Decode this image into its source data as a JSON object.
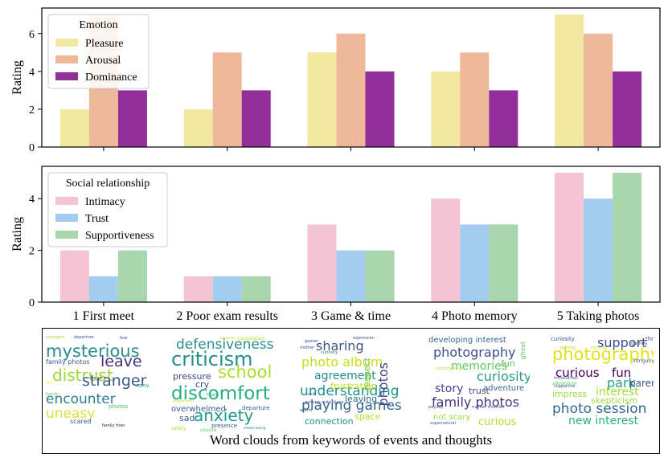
{
  "chart_data": [
    {
      "type": "bar",
      "categories": [
        "1 First meet",
        "2 Poor exam results",
        "3 Game & time",
        "4 Photo memory",
        "5 Taking photos"
      ],
      "series": [
        {
          "name": "Pleasure",
          "values": [
            2,
            2,
            5,
            4,
            7
          ],
          "color": "#f2e8a0"
        },
        {
          "name": "Arousal",
          "values": [
            7,
            5,
            6,
            5,
            6
          ],
          "color": "#efb89b"
        },
        {
          "name": "Dominance",
          "values": [
            3,
            3,
            4,
            3,
            4
          ],
          "color": "#922f9a"
        }
      ],
      "legend_title": "Emotion",
      "legend_position": "top-left",
      "xlabel": "",
      "ylabel": "Rating",
      "ylim": [
        0,
        7.35
      ],
      "yticks": [
        0,
        2,
        4,
        6
      ]
    },
    {
      "type": "bar",
      "categories": [
        "1 First meet",
        "2 Poor exam results",
        "3 Game & time",
        "4 Photo memory",
        "5 Taking photos"
      ],
      "series": [
        {
          "name": "Intimacy",
          "values": [
            2,
            1,
            3,
            4,
            5
          ],
          "color": "#f2c4d4"
        },
        {
          "name": "Trust",
          "values": [
            1,
            1,
            2,
            3,
            4
          ],
          "color": "#a3cdf0"
        },
        {
          "name": "Supportiveness",
          "values": [
            2,
            1,
            2,
            3,
            5
          ],
          "color": "#a8d6ad"
        }
      ],
      "legend_title": "Social relationship",
      "legend_position": "top-left",
      "xlabel": "",
      "ylabel": "Rating",
      "ylim": [
        0,
        5.25
      ],
      "yticks": [
        0,
        2,
        4
      ]
    }
  ],
  "word_clouds": {
    "caption": "Word clouds from keywords of events and thoughts",
    "clouds": [
      {
        "words": [
          {
            "t": "mysterious",
            "c": "#2b8e8c",
            "s": 21
          },
          {
            "t": "leave",
            "c": "#472f7d",
            "s": 19
          },
          {
            "t": "distrust",
            "c": "#a2d43a",
            "s": 20
          },
          {
            "t": "stranger",
            "c": "#3c5a8e",
            "s": 19
          },
          {
            "t": "encounter",
            "c": "#2c7f8e",
            "s": 17
          },
          {
            "t": "uneasy",
            "c": "#d9e33b",
            "s": 17
          },
          {
            "t": "family photos",
            "c": "#375b8d",
            "s": 8
          },
          {
            "t": "conversation",
            "c": "#2a9e89",
            "s": 7
          },
          {
            "t": "scared",
            "c": "#31698e",
            "s": 8
          },
          {
            "t": "photos",
            "c": "#4cc26c",
            "s": 7
          },
          {
            "t": "strangers",
            "c": "#aadc32",
            "s": 5
          },
          {
            "t": "departure",
            "c": "#3b528b",
            "s": 5
          },
          {
            "t": "fear",
            "c": "#3b528b",
            "s": 5
          },
          {
            "t": "family frien",
            "c": "#440154",
            "s": 5
          },
          {
            "t": "family",
            "c": "#5ec962",
            "s": 5
          },
          {
            "t": "mo",
            "c": "#fde725",
            "s": 5
          }
        ]
      },
      {
        "words": [
          {
            "t": "defensiveness",
            "c": "#2a8e8b",
            "s": 17
          },
          {
            "t": "criticism",
            "c": "#218f8d",
            "s": 24
          },
          {
            "t": "school",
            "c": "#addc30",
            "s": 21
          },
          {
            "t": "pressure",
            "c": "#3e4989",
            "s": 11
          },
          {
            "t": "cry",
            "c": "#3e4989",
            "s": 11
          },
          {
            "t": "discomfort",
            "c": "#27ad81",
            "s": 23
          },
          {
            "t": "overwhelmed",
            "c": "#365c8d",
            "s": 10
          },
          {
            "t": "sad",
            "c": "#365c8d",
            "s": 11
          },
          {
            "t": "anxiety",
            "c": "#1f9a8a",
            "s": 20
          },
          {
            "t": "departure",
            "c": "#365c8d",
            "s": 7
          },
          {
            "t": "presence",
            "c": "#365c8d",
            "s": 7
          },
          {
            "t": "unsure",
            "c": "#5ec962",
            "s": 6
          },
          {
            "t": "safety",
            "c": "#b5de2b",
            "s": 6
          },
          {
            "t": "consolation",
            "c": "#b5de2b",
            "s": 6
          },
          {
            "t": "tears",
            "c": "#35b779",
            "s": 6
          },
          {
            "t": "embarrassing",
            "c": "#2a788e",
            "s": 4
          },
          {
            "t": "disappointed",
            "c": "#b5de2b",
            "s": 4
          },
          {
            "t": "melancho",
            "c": "#b5de2b",
            "s": 4
          }
        ]
      },
      {
        "words": [
          {
            "t": "sharing",
            "c": "#3b528b",
            "s": 16
          },
          {
            "t": "photo album",
            "c": "#c7e020",
            "s": 16
          },
          {
            "t": "agreement",
            "c": "#23898e",
            "s": 14
          },
          {
            "t": "understanding",
            "c": "#21918c",
            "s": 17
          },
          {
            "t": "playing games",
            "c": "#31688e",
            "s": 17
          },
          {
            "t": "photos",
            "c": "#414487",
            "s": 16
          },
          {
            "t": "respect",
            "c": "#6ccd5a",
            "s": 11
          },
          {
            "t": "frustration",
            "c": "#c2df23",
            "s": 11
          },
          {
            "t": "leaving",
            "c": "#2e6e8e",
            "s": 11
          },
          {
            "t": "connection",
            "c": "#21918c",
            "s": 11
          },
          {
            "t": "space",
            "c": "#b5de2b",
            "s": 11
          },
          {
            "t": "games",
            "c": "#3b528b",
            "s": 5
          },
          {
            "t": "expression",
            "c": "#3b528b",
            "s": 5
          },
          {
            "t": "mother",
            "c": "#3b528b",
            "s": 5
          },
          {
            "t": "curiosity",
            "c": "#2a788e",
            "s": 5
          },
          {
            "t": "opportunity",
            "c": "#b5de2b",
            "s": 5
          },
          {
            "t": "sick",
            "c": "#3b528b",
            "s": 5
          },
          {
            "t": "gaming restrictions",
            "c": "#3b528b",
            "s": 5
          },
          {
            "t": "worrie",
            "c": "#3b528b",
            "s": 5
          }
        ]
      },
      {
        "words": [
          {
            "t": "developing interest",
            "c": "#31688e",
            "s": 10
          },
          {
            "t": "photography",
            "c": "#3b528b",
            "s": 16
          },
          {
            "t": "memories",
            "c": "#5ec962",
            "s": 14
          },
          {
            "t": "curiosity",
            "c": "#2a9e89",
            "s": 16
          },
          {
            "t": "story",
            "c": "#414487",
            "s": 14
          },
          {
            "t": "trust",
            "c": "#3e4a89",
            "s": 11
          },
          {
            "t": "family photos",
            "c": "#46327e",
            "s": 16
          },
          {
            "t": "curious",
            "c": "#b5de2b",
            "s": 13
          },
          {
            "t": "ghost",
            "c": "#5ec962",
            "s": 8
          },
          {
            "t": "fun",
            "c": "#5ec962",
            "s": 11
          },
          {
            "t": "adventure",
            "c": "#31688e",
            "s": 10
          },
          {
            "t": "not scary",
            "c": "#9fda3a",
            "s": 10
          },
          {
            "t": "supernatural",
            "c": "#3b528b",
            "s": 5
          },
          {
            "t": "curiosity facts",
            "c": "#b5de2b",
            "s": 5
          },
          {
            "t": "payday",
            "c": "#3b528b",
            "s": 5
          },
          {
            "t": "mother's stories",
            "c": "#3b528b",
            "s": 5
          }
        ]
      },
      {
        "words": [
          {
            "t": "support",
            "c": "#3b528b",
            "s": 16
          },
          {
            "t": "photography",
            "c": "#e1e31a",
            "s": 21
          },
          {
            "t": "curious",
            "c": "#440154",
            "s": 15
          },
          {
            "t": "fun",
            "c": "#440154",
            "s": 15
          },
          {
            "t": "park",
            "c": "#2a9e89",
            "s": 16
          },
          {
            "t": "parents",
            "c": "#3b528b",
            "s": 12
          },
          {
            "t": "interest",
            "c": "#a5db36",
            "s": 14
          },
          {
            "t": "impress",
            "c": "#9fda3a",
            "s": 11
          },
          {
            "t": "photo session",
            "c": "#31688e",
            "s": 17
          },
          {
            "t": "new interest",
            "c": "#2ab07f",
            "s": 14
          },
          {
            "t": "skepticism",
            "c": "#9fda3a",
            "s": 11
          },
          {
            "t": "curiosity",
            "c": "#3b528b",
            "s": 7
          },
          {
            "t": "thrill",
            "c": "#3b528b",
            "s": 7
          },
          {
            "t": "games",
            "c": "#3b528b",
            "s": 6
          },
          {
            "t": "gaming",
            "c": "#b5de2b",
            "s": 5
          },
          {
            "t": "exciting",
            "c": "#b5de2b",
            "s": 5
          },
          {
            "t": "intriguing",
            "c": "#3b528b",
            "s": 6
          },
          {
            "t": "introduction",
            "c": "#3b528b",
            "s": 5
          },
          {
            "t": "supportive",
            "c": "#3b528b",
            "s": 5
          },
          {
            "t": "adventure",
            "c": "#5ec962",
            "s": 6
          }
        ]
      }
    ]
  }
}
